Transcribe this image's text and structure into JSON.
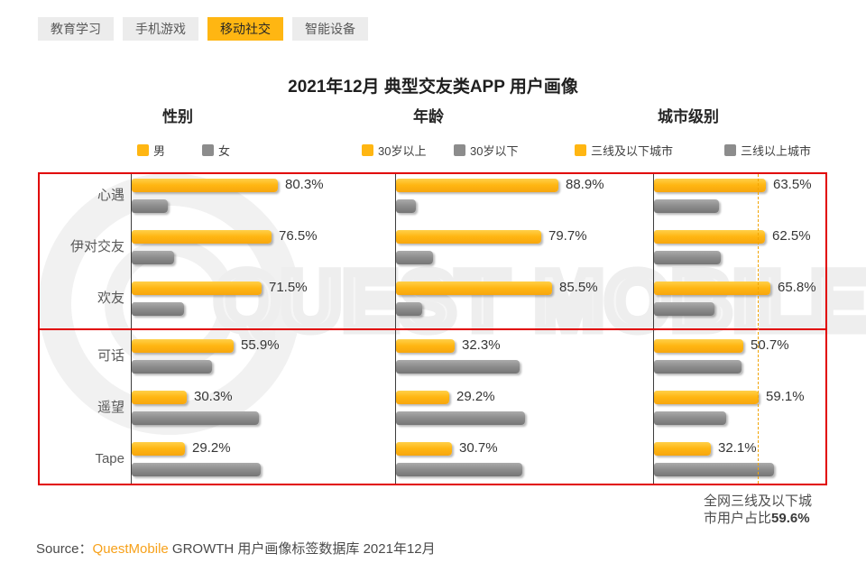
{
  "tabs": {
    "items": [
      {
        "label": "教育学习",
        "active": false
      },
      {
        "label": "手机游戏",
        "active": false
      },
      {
        "label": "移动社交",
        "active": true
      },
      {
        "label": "智能设备",
        "active": false
      }
    ]
  },
  "annotation": {
    "text": "全网三线及以下城市用户占比",
    "value": "59.6%"
  },
  "source": {
    "prefix": "Source：",
    "brand": "QuestMobile",
    "suffix": " GROWTH 用户画像标签数据库 2021年12月"
  },
  "watermark": {
    "text": "QUEST MOBILE"
  },
  "colors": {
    "bar_orange": "#FFB612",
    "bar_gray": "#8C8C8C",
    "box_red": "#E10000",
    "tab_active_bg": "#FFB612",
    "reference_dashed": "#F2A500"
  },
  "chart_data": {
    "type": "bar",
    "orientation": "horizontal",
    "title": "2021年12月 典型交友类APP 用户画像",
    "unit": "%",
    "xlim": [
      0,
      100
    ],
    "categories": [
      "心遇",
      "伊对交友",
      "欢友",
      "可话",
      "遥望",
      "Tape"
    ],
    "group_boxes": [
      [
        "心遇",
        "伊对交友",
        "欢友"
      ],
      [
        "可话",
        "遥望",
        "Tape"
      ]
    ],
    "panels": [
      {
        "header": "性别",
        "series": [
          {
            "name": "男",
            "color": "orange",
            "labeled": true,
            "values": [
              80.3,
              76.5,
              71.5,
              55.9,
              30.3,
              29.2
            ]
          },
          {
            "name": "女",
            "color": "gray",
            "labeled": false,
            "values": [
              19.7,
              23.5,
              28.5,
              44.1,
              69.7,
              70.8
            ]
          }
        ]
      },
      {
        "header": "年龄",
        "series": [
          {
            "name": "30岁以上",
            "color": "orange",
            "labeled": true,
            "values": [
              88.9,
              79.7,
              85.5,
              32.3,
              29.2,
              30.7
            ]
          },
          {
            "name": "30岁以下",
            "color": "gray",
            "labeled": false,
            "values": [
              11.1,
              20.3,
              14.5,
              67.7,
              70.8,
              69.3
            ]
          }
        ]
      },
      {
        "header": "城市级别",
        "series": [
          {
            "name": "三线及以下城市",
            "color": "orange",
            "labeled": true,
            "values": [
              63.5,
              62.5,
              65.8,
              50.7,
              59.1,
              32.1
            ]
          },
          {
            "name": "三线以上城市",
            "color": "gray",
            "labeled": false,
            "values": [
              36.5,
              37.5,
              34.2,
              49.3,
              40.9,
              67.9
            ]
          }
        ],
        "reference_line": {
          "value": 59.6,
          "label": "全网三线及以下城市用户占比59.6%"
        }
      }
    ]
  }
}
